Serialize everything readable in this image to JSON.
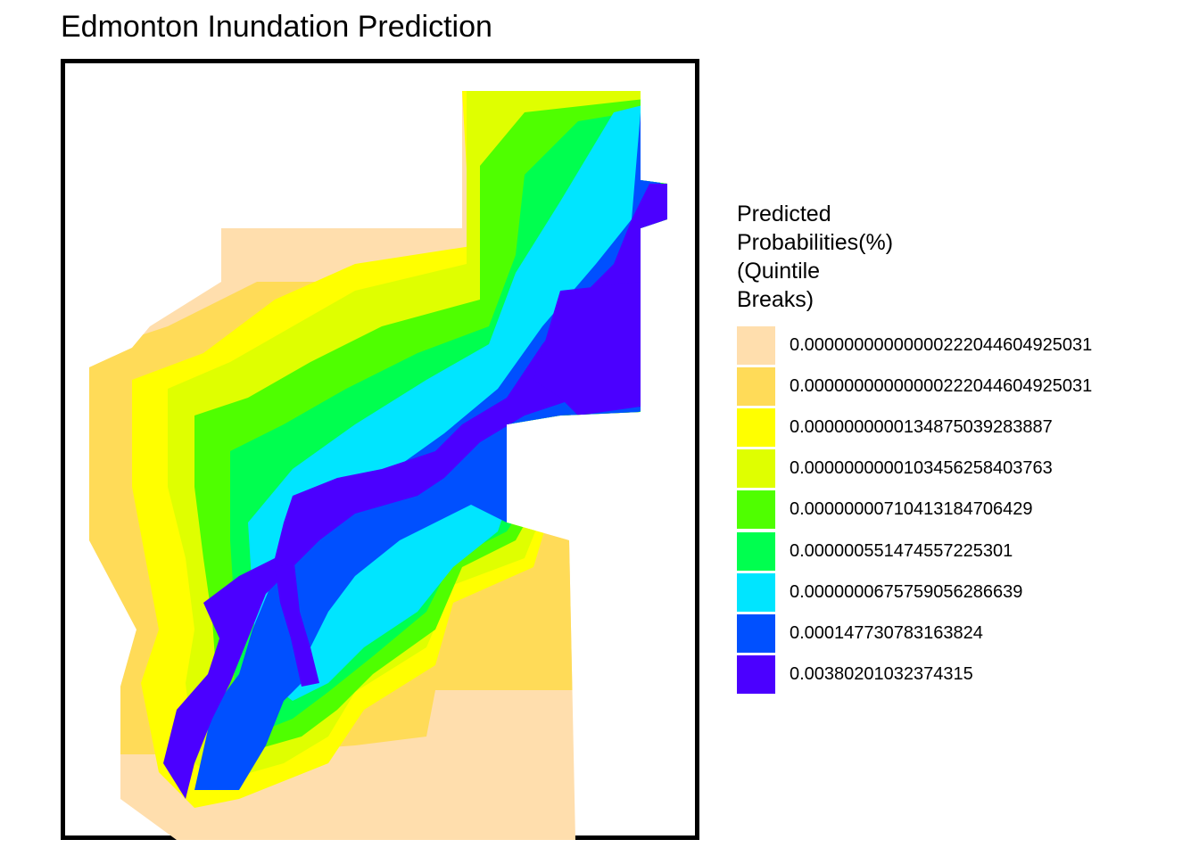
{
  "title": "Edmonton Inundation Prediction",
  "legend": {
    "title_lines": [
      "Predicted",
      "Probabilities(%)",
      "(Quintile",
      "Breaks)"
    ],
    "items": [
      {
        "label": "0.00000000000000222044604925031",
        "color": "#FFDEAD"
      },
      {
        "label": "0.00000000000000222044604925031",
        "color": "#FFDB58"
      },
      {
        "label": "0.0000000000134875039283887",
        "color": "#FFFF00"
      },
      {
        "label": "0.0000000000103456258403763",
        "color": "#DFFF00"
      },
      {
        "label": "0.00000000710413184706429",
        "color": "#4FFF00"
      },
      {
        "label": "0.000000551474557225301",
        "color": "#00FF4F"
      },
      {
        "label": "0.0000000675759056286639",
        "color": "#00E5FF"
      },
      {
        "label": "0.000147730783163824",
        "color": "#0050FF"
      },
      {
        "label": "0.00380201032374315",
        "color": "#4B00FF"
      }
    ]
  }
}
